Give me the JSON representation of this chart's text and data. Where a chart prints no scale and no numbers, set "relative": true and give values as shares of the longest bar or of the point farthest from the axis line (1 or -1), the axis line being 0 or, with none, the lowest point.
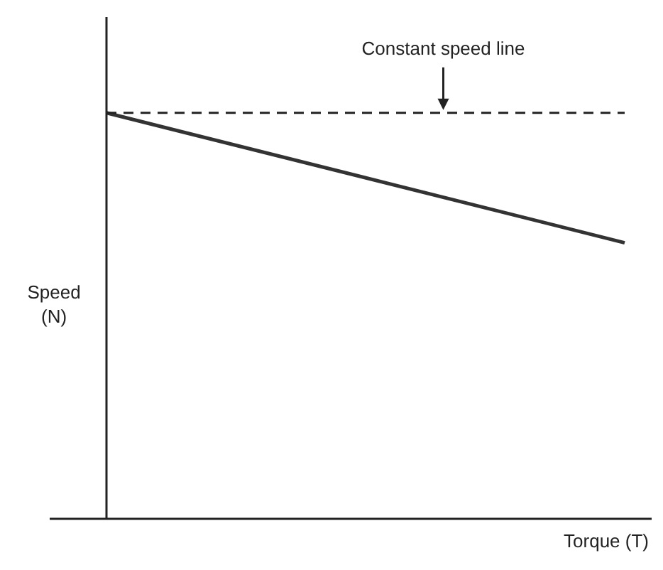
{
  "chart_data": {
    "type": "line",
    "relative": true,
    "xlabel": "Torque (T)",
    "ylabel": "Speed (N)",
    "categories": [
      null,
      null
    ],
    "series": [
      {
        "color": "#333333",
        "values": [
          1,
          0.68
        ]
      }
    ],
    "ref_lines": [
      {
        "axis": "y",
        "value": 1,
        "label": "Constant speed line",
        "line_style": "dashed",
        "color": "#222222"
      }
    ],
    "legend": false,
    "marker": "none",
    "line_style": "solid"
  }
}
